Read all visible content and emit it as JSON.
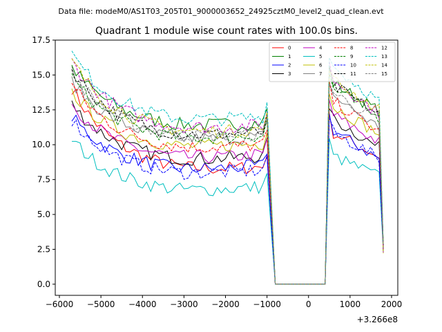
{
  "suptitle": "Data file: modeM0/AS1T03_205T01_9000003652_24925cztM0_level2_quad_clean.evt",
  "chart_data": {
    "type": "line",
    "title": "Quadrant 1 module wise count rates with 100.0s bins.",
    "xlabel": "",
    "ylabel": "",
    "offset_label": "+3.266e8",
    "xlim": [
      -6100,
      2150
    ],
    "ylim": [
      -0.8,
      17.5
    ],
    "xticks": [
      -6000,
      -5000,
      -4000,
      -3000,
      -2000,
      -1000,
      0,
      1000,
      2000
    ],
    "yticks": [
      0.0,
      2.5,
      5.0,
      7.5,
      10.0,
      12.5,
      15.0,
      17.5
    ],
    "xtick_labels": [
      "−6000",
      "−5000",
      "−4000",
      "−3000",
      "−2000",
      "−1000",
      "0",
      "1000",
      "2000"
    ],
    "ytick_labels": [
      "0.0",
      "2.5",
      "5.0",
      "7.5",
      "10.0",
      "12.5",
      "15.0",
      "17.5"
    ],
    "grid": false,
    "legend_position": "top-right",
    "gap_x": [
      -800,
      400
    ],
    "seg1_start": -5700,
    "seg1_end": -1000,
    "seg2_start": 500,
    "seg2_end": 1800,
    "series": [
      {
        "name": "0",
        "color": "#ff0000",
        "dash": "solid",
        "start": 14.1,
        "settle": 7.8,
        "seg2_start": 11.0,
        "seg2_end": 9.0
      },
      {
        "name": "1",
        "color": "#008000",
        "dash": "solid",
        "start": 15.6,
        "settle": 11.0,
        "seg2_start": 14.6,
        "seg2_end": 12.2
      },
      {
        "name": "2",
        "color": "#0000ff",
        "dash": "solid",
        "start": 12.0,
        "settle": 7.9,
        "seg2_start": 11.2,
        "seg2_end": 8.8
      },
      {
        "name": "3",
        "color": "#000000",
        "dash": "solid",
        "start": 12.9,
        "settle": 8.6,
        "seg2_start": 12.0,
        "seg2_end": 9.6
      },
      {
        "name": "4",
        "color": "#bf00bf",
        "dash": "solid",
        "start": 13.0,
        "settle": 8.7,
        "seg2_start": 12.3,
        "seg2_end": 10.0
      },
      {
        "name": "5",
        "color": "#00bfbf",
        "dash": "solid",
        "start": 10.4,
        "settle": 6.4,
        "seg2_start": 9.3,
        "seg2_end": 7.6
      },
      {
        "name": "6",
        "color": "#bfbf00",
        "dash": "solid",
        "start": 13.8,
        "settle": 9.5,
        "seg2_start": 12.9,
        "seg2_end": 10.6
      },
      {
        "name": "7",
        "color": "#808080",
        "dash": "solid",
        "start": 14.6,
        "settle": 10.0,
        "seg2_start": 13.7,
        "seg2_end": 11.0
      },
      {
        "name": "8",
        "color": "#ff0000",
        "dash": "dashed",
        "start": 14.3,
        "settle": 9.4,
        "seg2_start": 13.3,
        "seg2_end": 10.7
      },
      {
        "name": "9",
        "color": "#008000",
        "dash": "dashed",
        "start": 14.8,
        "settle": 10.1,
        "seg2_start": 14.2,
        "seg2_end": 11.7
      },
      {
        "name": "10",
        "color": "#0000ff",
        "dash": "dashed",
        "start": 11.8,
        "settle": 7.6,
        "seg2_start": 11.0,
        "seg2_end": 8.9
      },
      {
        "name": "11",
        "color": "#000000",
        "dash": "dashed",
        "start": 15.4,
        "settle": 10.3,
        "seg2_start": 14.4,
        "seg2_end": 12.0
      },
      {
        "name": "12",
        "color": "#bf00bf",
        "dash": "dashed",
        "start": 16.0,
        "settle": 10.8,
        "seg2_start": 14.9,
        "seg2_end": 12.0
      },
      {
        "name": "13",
        "color": "#00bfbf",
        "dash": "dashed",
        "start": 16.5,
        "settle": 11.4,
        "seg2_start": 15.8,
        "seg2_end": 12.9
      },
      {
        "name": "14",
        "color": "#bfbf00",
        "dash": "dashed",
        "start": 16.0,
        "settle": 10.5,
        "seg2_start": 14.8,
        "seg2_end": 12.3
      },
      {
        "name": "15",
        "color": "#808080",
        "dash": "dashed",
        "start": 15.2,
        "settle": 10.2,
        "seg2_start": 13.9,
        "seg2_end": 11.5
      }
    ]
  }
}
